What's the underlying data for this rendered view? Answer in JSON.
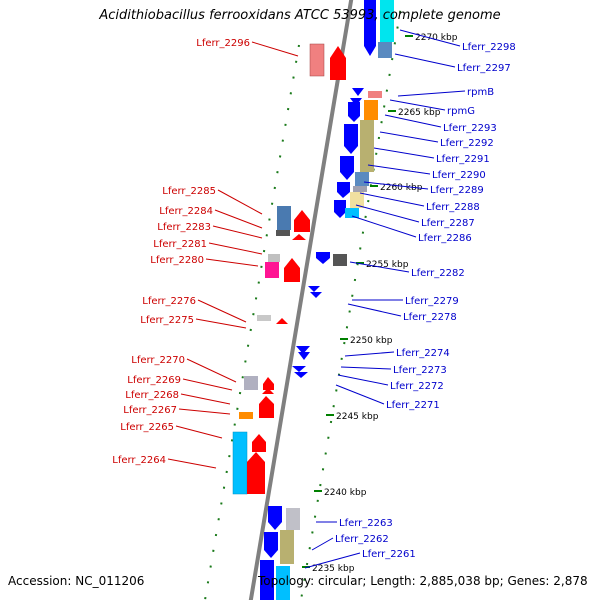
{
  "title": "Acidithiobacillus ferrooxidans ATCC 53993, complete genome",
  "accession": "Accession: NC_011206",
  "summary": "Topology: circular; Length: 2,885,038 bp; Genes: 2,878",
  "colors": {
    "forward": "#ff0000",
    "reverse": "#0000ff",
    "backbone": "#808080",
    "tick": "#008000",
    "left_label": "#cc0000",
    "right_label": "#0000cc"
  },
  "kbp_ticks": [
    {
      "text": "2270 kbp",
      "forward_offset": 7
    },
    {
      "text": "2265 kbp",
      "forward_offset": 6
    },
    {
      "text": "2260 kbp",
      "forward_offset": 5
    },
    {
      "text": "2255 kbp",
      "forward_offset": 4
    },
    {
      "text": "2250 kbp",
      "forward_offset": 3
    },
    {
      "text": "2245 kbp",
      "forward_offset": 2
    },
    {
      "text": "2240 kbp",
      "forward_offset": 1
    },
    {
      "text": "2235 kbp",
      "forward_offset": 0
    }
  ],
  "left_labels": [
    "Lferr_2296",
    "Lferr_2285",
    "Lferr_2284",
    "Lferr_2283",
    "Lferr_2281",
    "Lferr_2280",
    "Lferr_2276",
    "Lferr_2275",
    "Lferr_2270",
    "Lferr_2269",
    "Lferr_2268",
    "Lferr_2267",
    "Lferr_2265",
    "Lferr_2264"
  ],
  "right_labels": [
    "Lferr_2298",
    "Lferr_2297",
    "rpmB",
    "rpmG",
    "Lferr_2293",
    "Lferr_2292",
    "Lferr_2291",
    "Lferr_2290",
    "Lferr_2289",
    "Lferr_2288",
    "Lferr_2287",
    "Lferr_2286",
    "Lferr_2282",
    "Lferr_2279",
    "Lferr_2278",
    "Lferr_2274",
    "Lferr_2273",
    "Lferr_2272",
    "Lferr_2271",
    "Lferr_2263",
    "Lferr_2262",
    "Lferr_2261"
  ]
}
